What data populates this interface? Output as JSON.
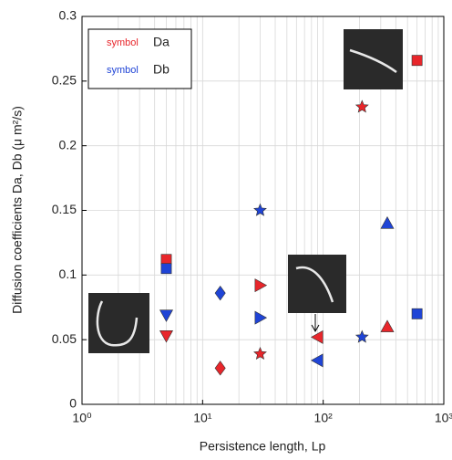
{
  "chart_data": {
    "type": "scatter",
    "x_label": "Persistence length, Lp",
    "y_label": "Diffusion coefficients Da, Db (μ m²/s)",
    "xscale": "log",
    "grid": true,
    "xlim": [
      1,
      1000
    ],
    "xticks": [
      {
        "value": 1,
        "label": "10⁰"
      },
      {
        "value": 10,
        "label": "10¹"
      },
      {
        "value": 100,
        "label": "10²"
      },
      {
        "value": 1000,
        "label": "10³"
      }
    ],
    "ylim": [
      0,
      0.3
    ],
    "yticks": [
      0,
      0.05,
      0.1,
      0.15,
      0.2,
      0.25,
      0.3
    ],
    "legend": "upper left",
    "markers": [
      "square",
      "triangle-down",
      "diamond",
      "triangle-right",
      "star",
      "triangle-left",
      "star",
      "triangle-up",
      "square"
    ],
    "series": [
      {
        "name": "Da",
        "legend_label": "symbol",
        "color": "#e8262b",
        "x": [
          5,
          5,
          14,
          30,
          30,
          90,
          210,
          340,
          600
        ],
        "values": [
          0.112,
          0.053,
          0.028,
          0.092,
          0.039,
          0.052,
          0.23,
          0.06,
          0.266
        ]
      },
      {
        "name": "Db",
        "legend_label": "symbol",
        "color": "#1f44d6",
        "x": [
          5,
          5,
          14,
          30,
          30,
          90,
          210,
          340,
          600
        ],
        "values": [
          0.105,
          0.069,
          0.086,
          0.067,
          0.15,
          0.034,
          0.052,
          0.14,
          0.07
        ]
      }
    ]
  }
}
